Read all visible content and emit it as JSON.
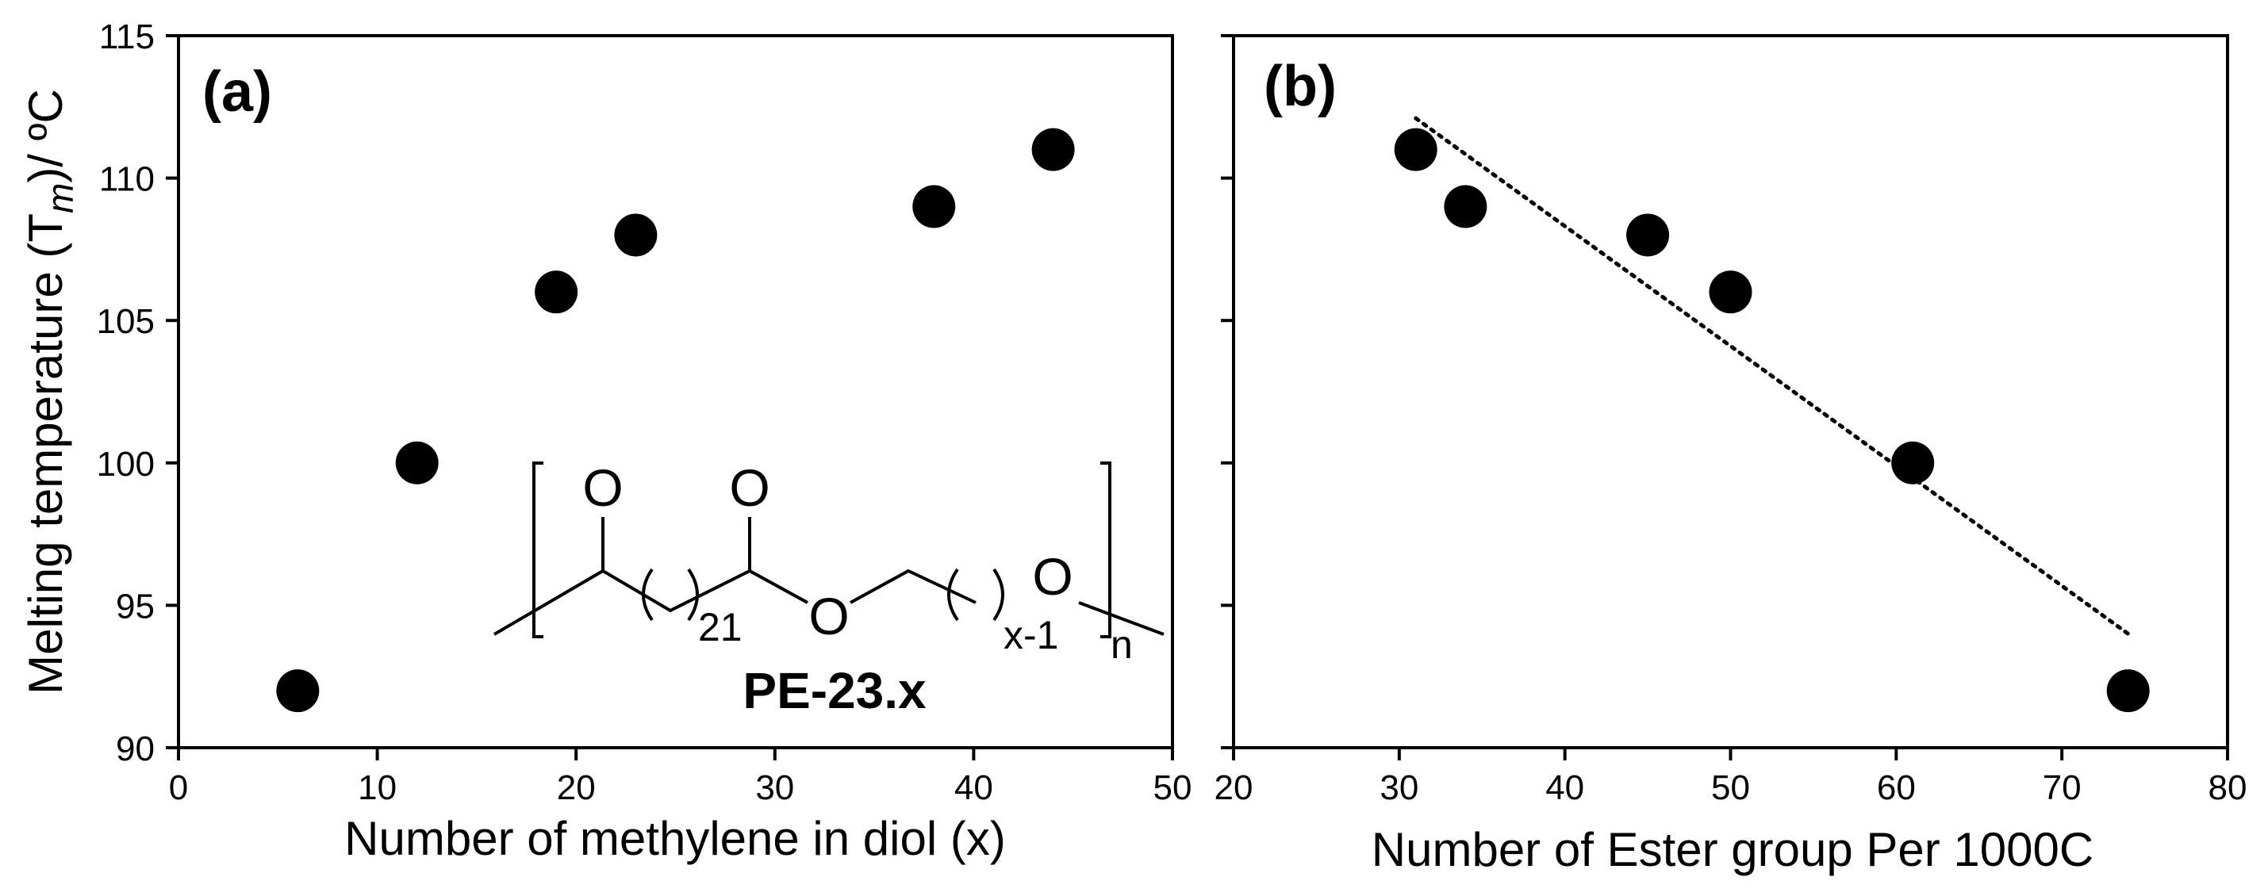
{
  "chart_data": [
    {
      "panel": "(a)",
      "type": "scatter",
      "xlabel": "Number of methylene in diol (x)",
      "ylabel": "Melting temperature (T",
      "ylabel_sub": "m",
      "ylabel_tail": ")/ ºC",
      "xlim": [
        0,
        50
      ],
      "ylim": [
        90,
        115
      ],
      "xticks": [
        "0",
        "10",
        "20",
        "30",
        "40",
        "50"
      ],
      "yticks": [
        "90",
        "95",
        "100",
        "105",
        "110",
        "115"
      ],
      "points": [
        {
          "x": 6,
          "y": 92
        },
        {
          "x": 12,
          "y": 100
        },
        {
          "x": 19,
          "y": 106
        },
        {
          "x": 23,
          "y": 108
        },
        {
          "x": 38,
          "y": 109
        },
        {
          "x": 44,
          "y": 111
        }
      ],
      "structure": {
        "o1": "O",
        "o2": "O",
        "o3": "O",
        "o4": "O",
        "sub1": "21",
        "sub2": "x-1",
        "sub_n": "n",
        "name": "PE-23.x"
      }
    },
    {
      "panel": "(b)",
      "type": "scatter",
      "xlabel": "Number of Ester group Per 1000C",
      "ylabel": "",
      "xlim": [
        20,
        80
      ],
      "ylim": [
        90,
        115
      ],
      "xticks": [
        "20",
        "30",
        "40",
        "50",
        "60",
        "70",
        "80"
      ],
      "points": [
        {
          "x": 31,
          "y": 111
        },
        {
          "x": 34,
          "y": 109
        },
        {
          "x": 45,
          "y": 108
        },
        {
          "x": 50,
          "y": 106
        },
        {
          "x": 61,
          "y": 100
        },
        {
          "x": 74,
          "y": 92
        }
      ],
      "trendline": {
        "x": [
          31,
          74
        ],
        "y": [
          112.1,
          94.0
        ],
        "style": "dotted"
      }
    }
  ]
}
